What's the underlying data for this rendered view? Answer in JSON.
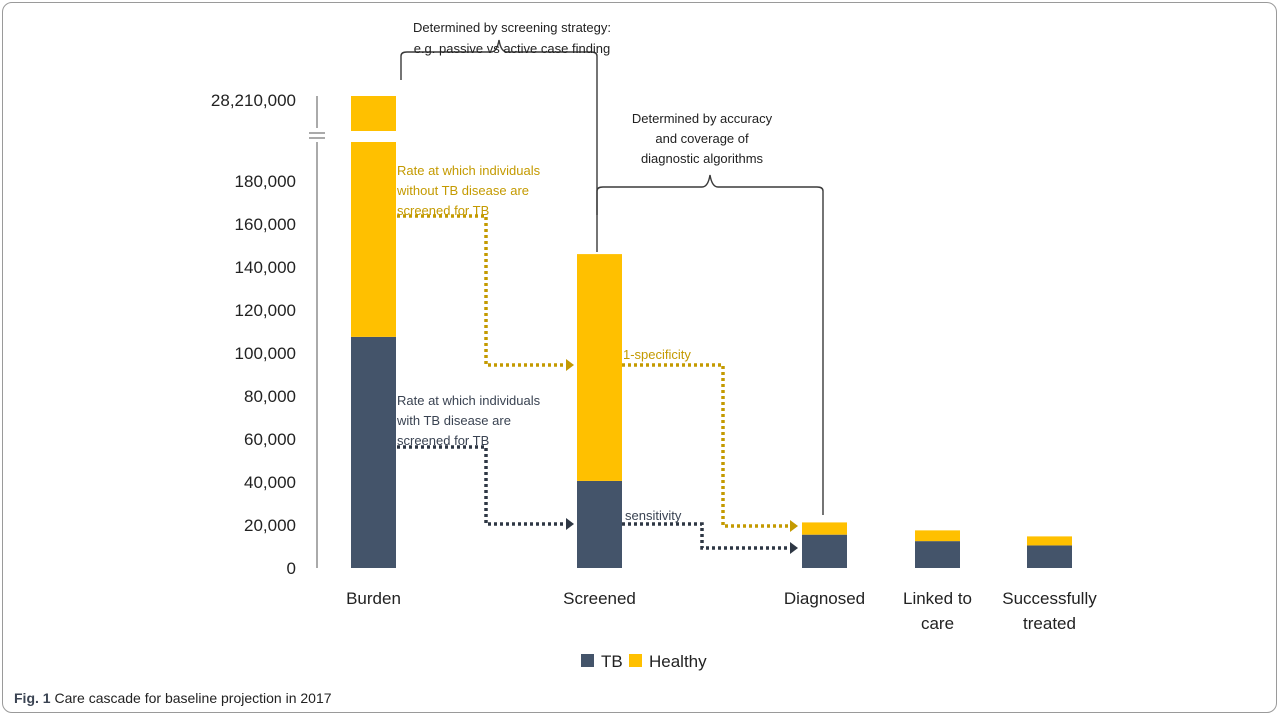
{
  "chart_data": {
    "type": "bar",
    "stacked": true,
    "categories": [
      "Burden",
      "Screened",
      "Diagnosed",
      "Linked to care",
      "Successfully treated"
    ],
    "category_lines": [
      [
        "Burden"
      ],
      [
        "Screened"
      ],
      [
        "Diagnosed"
      ],
      [
        "Linked to",
        "care"
      ],
      [
        "Successfully",
        "treated"
      ]
    ],
    "series": [
      {
        "name": "TB",
        "color": "#44546a",
        "values": [
          107500,
          40500,
          15500,
          12500,
          10500
        ]
      },
      {
        "name": "Healthy",
        "color": "#ffc000",
        "values": [
          28102500,
          105500,
          5700,
          5000,
          4200
        ]
      }
    ],
    "burden_total_label": "28,210,000",
    "yticks": [
      "0",
      "20,000",
      "40,000",
      "60,000",
      "80,000",
      "100,000",
      "120,000",
      "140,000",
      "160,000",
      "180,000"
    ],
    "ylim": [
      0,
      180000
    ],
    "axis_break": true,
    "annotations": {
      "bracket1": [
        "Determined by screening strategy:",
        "e.g. passive vs active case finding"
      ],
      "bracket2": [
        "Determined by accuracy",
        "and coverage of",
        "diagnostic algorithms"
      ],
      "healthy_rate": [
        "Rate at which individuals",
        "without TB disease are",
        "screened for TB"
      ],
      "tb_rate": [
        "Rate at which individuals",
        "with TB disease are",
        "screened for TB"
      ],
      "specificity": "1-specificity",
      "sensitivity": "sensitivity"
    },
    "legend": {
      "position": "bottom-center",
      "items": [
        "TB",
        "Healthy"
      ]
    }
  },
  "caption": {
    "label": "Fig. 1",
    "text": "Care cascade for baseline projection in 2017"
  }
}
